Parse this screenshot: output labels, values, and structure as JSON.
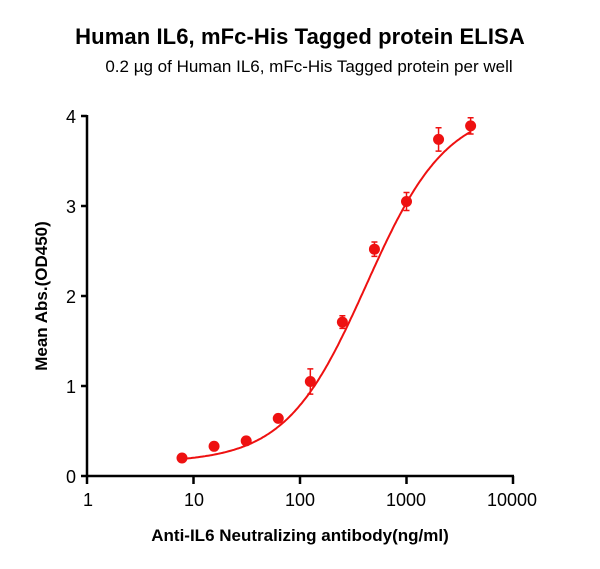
{
  "title": "Human IL6,  mFc-His Tagged protein ELISA",
  "subtitle": "0.2 µg of Human IL6, mFc-His Tagged protein per well",
  "colors": {
    "series": "#ee1111",
    "axis": "#000000"
  },
  "chart_data": {
    "type": "scatter",
    "title": "Human IL6,  mFc-His Tagged protein ELISA",
    "subtitle": "0.2 µg of Human IL6, mFc-His Tagged protein per well",
    "xlabel": "Anti-IL6 Neutralizing antibody(ng/ml)",
    "ylabel": "Mean Abs.(OD450)",
    "xscale": "log",
    "xlim": [
      1,
      10000
    ],
    "ylim": [
      0,
      4
    ],
    "xticks": [
      "1",
      "10",
      "100",
      "1000",
      "10000"
    ],
    "yticks": [
      "0",
      "1",
      "2",
      "3",
      "4"
    ],
    "grid": false,
    "legend": null,
    "fit": "4-parameter logistic curve",
    "series": [
      {
        "name": "Anti-IL6 Neutralizing antibody",
        "x": [
          7.8,
          15.6,
          31.25,
          62.5,
          125,
          250,
          500,
          1000,
          2000,
          4000
        ],
        "y": [
          0.2,
          0.33,
          0.39,
          0.64,
          1.05,
          1.71,
          2.52,
          3.05,
          3.74,
          3.89
        ],
        "error": [
          0.03,
          0.04,
          0.03,
          0.03,
          0.14,
          0.07,
          0.08,
          0.1,
          0.13,
          0.09
        ]
      }
    ]
  }
}
